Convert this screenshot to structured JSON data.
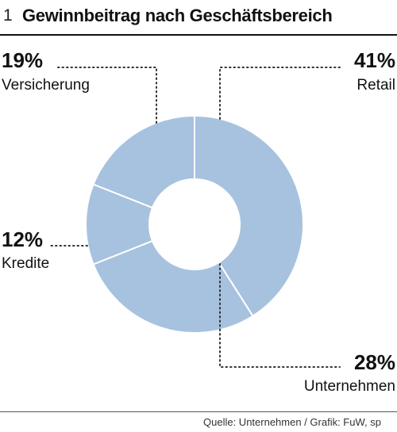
{
  "header": {
    "figure_number": "1",
    "title": "Gewinnbeitrag nach Geschäftsbereich"
  },
  "source": "Quelle: Unternehmen / Grafik: FuW, sp",
  "colors": {
    "slice_fill": "#a7c2de",
    "slice_stroke": "#ffffff",
    "leader_line": "#333333",
    "text": "#111111"
  },
  "chart_data": {
    "type": "pie",
    "donut": true,
    "title": "Gewinnbeitrag nach Geschäftsbereich",
    "unit": "%",
    "categories": [
      "Retail",
      "Unternehmen",
      "Kredite",
      "Versicherung"
    ],
    "values": [
      41,
      28,
      12,
      19
    ],
    "labels": [
      "41%",
      "28%",
      "12%",
      "19%"
    ],
    "legend": "none"
  }
}
